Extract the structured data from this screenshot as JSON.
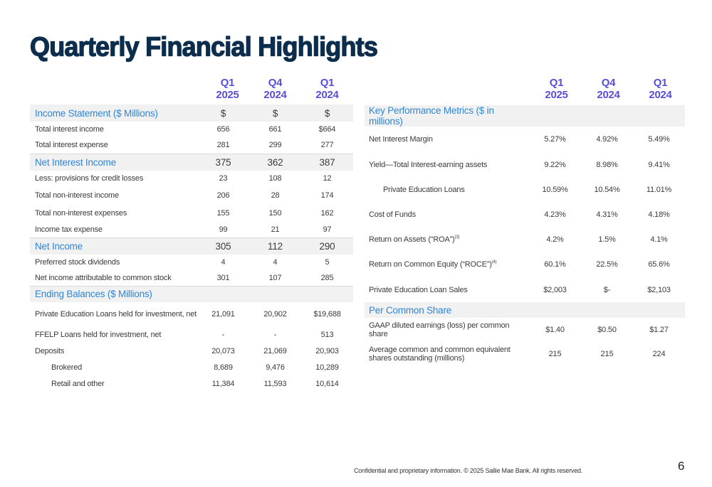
{
  "title": "Quarterly Financial Highlights",
  "columns": [
    {
      "q": "Q1",
      "y": "2025"
    },
    {
      "q": "Q4",
      "y": "2024"
    },
    {
      "q": "Q1",
      "y": "2024"
    }
  ],
  "left": {
    "income_statement": {
      "label": "Income Statement ($ Millions)",
      "units": [
        "$",
        "$",
        "$"
      ]
    },
    "rows1": [
      {
        "label": "Total interest income",
        "v": [
          "656",
          "661",
          "$664"
        ]
      },
      {
        "label": "Total interest expense",
        "v": [
          "281",
          "299",
          "277"
        ]
      }
    ],
    "net_interest_income": {
      "label": "Net Interest Income",
      "v": [
        "375",
        "362",
        "387"
      ]
    },
    "rows2": [
      {
        "label": "Less: provisions for credit losses",
        "v": [
          "23",
          "108",
          "12"
        ]
      },
      {
        "label": "Total non-interest income",
        "v": [
          "206",
          "28",
          "174"
        ]
      },
      {
        "label": "Total non-interest expenses",
        "v": [
          "155",
          "150",
          "162"
        ]
      },
      {
        "label": "Income tax expense",
        "v": [
          "99",
          "21",
          "97"
        ]
      }
    ],
    "net_income": {
      "label": "Net Income",
      "v": [
        "305",
        "112",
        "290"
      ]
    },
    "rows3": [
      {
        "label": "Preferred stock dividends",
        "v": [
          "4",
          "4",
          "5"
        ]
      },
      {
        "label": "Net income attributable to common stock",
        "v": [
          "301",
          "107",
          "285"
        ]
      }
    ],
    "ending_balances": {
      "label": "Ending Balances ($ Millions)"
    },
    "rows4": [
      {
        "label": "Private Education Loans held for investment, net",
        "v": [
          "21,091",
          "20,902",
          "$19,688"
        ]
      },
      {
        "label": "FFELP Loans held for investment, net",
        "v": [
          "-",
          "-",
          "513"
        ]
      },
      {
        "label": "Deposits",
        "v": [
          "20,073",
          "21,069",
          "20,903"
        ]
      },
      {
        "label": "Brokered",
        "v": [
          "8,689",
          "9,476",
          "10,289"
        ]
      },
      {
        "label": "Retail and other",
        "v": [
          "11,384",
          "11,593",
          "10,614"
        ]
      }
    ]
  },
  "right": {
    "kpm": {
      "label": "Key Performance Metrics ($ in millions)"
    },
    "rows1": [
      {
        "label": "Net Interest Margin",
        "v": [
          "5.27%",
          "4.92%",
          "5.49%"
        ]
      },
      {
        "label": "Yield—Total Interest-earning assets",
        "v": [
          "9.22%",
          "8.98%",
          "9.41%"
        ]
      },
      {
        "label": "Private Education Loans",
        "v": [
          "10.59%",
          "10.54%",
          "11.01%"
        ]
      },
      {
        "label": "Cost of Funds",
        "v": [
          "4.23%",
          "4.31%",
          "4.18%"
        ]
      },
      {
        "label": "Return on Assets (“ROA”)",
        "sup": "(3)",
        "v": [
          "4.2%",
          "1.5%",
          "4.1%"
        ]
      },
      {
        "label": "Return on Common Equity (“ROCE”)",
        "sup": "(4)",
        "v": [
          "60.1%",
          "22.5%",
          "65.6%"
        ]
      },
      {
        "label": "Private Education Loan Sales",
        "v": [
          "$2,003",
          "$-",
          "$2,103"
        ]
      }
    ],
    "per_share": {
      "label": "Per Common Share"
    },
    "rows2": [
      {
        "label": "GAAP diluted earnings (loss) per common share",
        "v": [
          "$1.40",
          "$0.50",
          "$1.27"
        ]
      },
      {
        "label": "Average common and common equivalent shares outstanding (millions)",
        "v": [
          "215",
          "215",
          "224"
        ]
      }
    ]
  },
  "footer": "Confidential and proprietary information. © 2025 Sallie Mae Bank. All rights reserved.",
  "page_number": "6"
}
